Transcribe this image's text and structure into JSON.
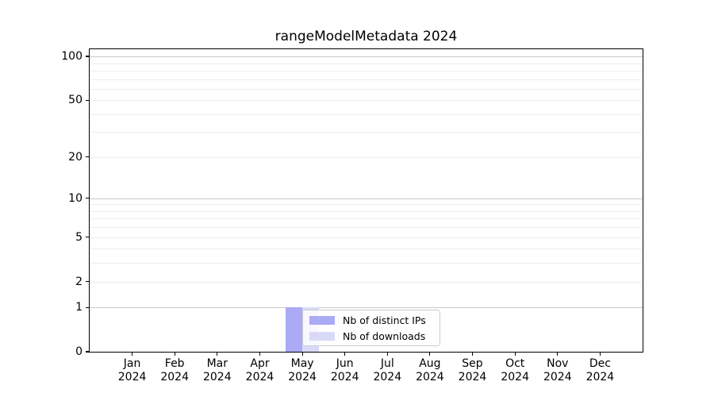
{
  "chart_data": {
    "type": "bar",
    "title": "rangeModelMetadata 2024",
    "xlabel": "",
    "ylabel": "",
    "year": "2024",
    "categories": [
      "Jan",
      "Feb",
      "Mar",
      "Apr",
      "May",
      "Jun",
      "Jul",
      "Aug",
      "Sep",
      "Oct",
      "Nov",
      "Dec"
    ],
    "series": [
      {
        "name": "Nb of distinct IPs",
        "color": "#aaaaf6",
        "values": [
          0,
          0,
          0,
          0,
          1,
          0,
          0,
          0,
          0,
          0,
          0,
          0
        ]
      },
      {
        "name": "Nb of downloads",
        "color": "#dadaf8",
        "values": [
          0,
          0,
          0,
          0,
          1,
          0,
          0,
          0,
          0,
          0,
          0,
          0
        ]
      }
    ],
    "yscale": "log1p",
    "ylim": [
      0,
      112
    ],
    "yticks": [
      {
        "value": 100,
        "label": "100"
      },
      {
        "value": 50,
        "label": "50"
      },
      {
        "value": 20,
        "label": "20"
      },
      {
        "value": 10,
        "label": "10"
      },
      {
        "value": 5,
        "label": "5"
      },
      {
        "value": 2,
        "label": "2"
      },
      {
        "value": 1,
        "label": "1"
      },
      {
        "value": 0,
        "label": "0"
      }
    ],
    "major_gridlines": [
      1,
      10,
      100
    ],
    "minor_gridlines": [
      2,
      3,
      4,
      5,
      6,
      7,
      8,
      9,
      20,
      30,
      40,
      50,
      60,
      70,
      80,
      90
    ],
    "grid": true,
    "legend_position": "lower-center-inside"
  },
  "colors": {
    "background": "#ffffff",
    "spine": "#000000",
    "major_grid": "#c9c9c9",
    "minor_grid": "#ededed",
    "legend_border": "#cccccc"
  }
}
